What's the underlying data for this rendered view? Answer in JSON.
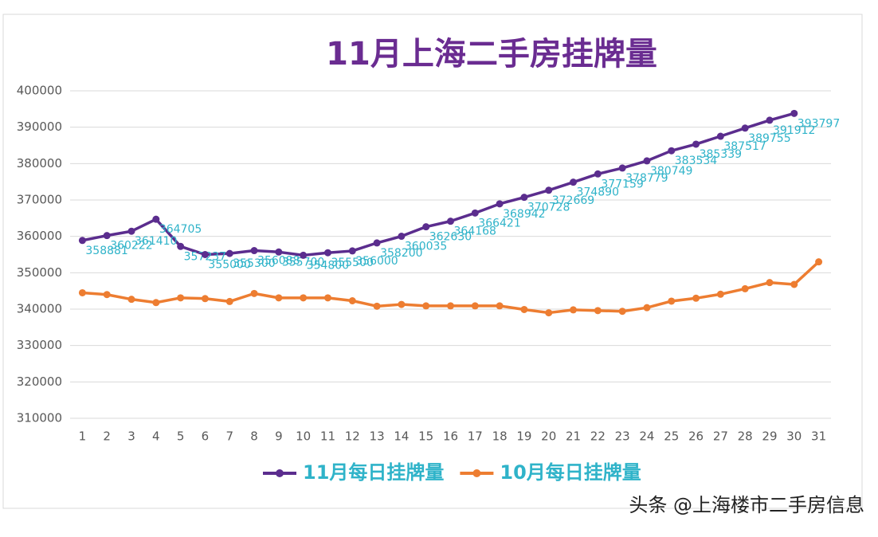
{
  "chart_data": {
    "type": "line",
    "title": "11月上海二手房挂牌量",
    "categories": [
      "1",
      "2",
      "3",
      "4",
      "5",
      "6",
      "7",
      "8",
      "9",
      "10",
      "11",
      "12",
      "13",
      "14",
      "15",
      "16",
      "17",
      "18",
      "19",
      "20",
      "21",
      "22",
      "23",
      "24",
      "25",
      "26",
      "27",
      "28",
      "29",
      "30",
      "31"
    ],
    "series": [
      {
        "name": "11月每日挂牌量",
        "color": "#5b2d8e",
        "data_labels": true,
        "values": [
          358881,
          360222,
          361410,
          364705,
          357237,
          355000,
          355300,
          356088,
          355700,
          354800,
          355500,
          356000,
          358200,
          360035,
          362630,
          364168,
          366421,
          368942,
          370728,
          372669,
          374890,
          377159,
          378779,
          380749,
          383534,
          385339,
          387517,
          389755,
          391912,
          393797,
          null
        ]
      },
      {
        "name": "10月每日挂牌量",
        "color": "#ed7d31",
        "data_labels": false,
        "values": [
          344500,
          344000,
          342700,
          341800,
          343100,
          342900,
          342100,
          344300,
          343100,
          343100,
          343100,
          342300,
          340800,
          341300,
          340900,
          340900,
          340900,
          340900,
          339900,
          339000,
          339800,
          339600,
          339400,
          340400,
          342200,
          343000,
          344100,
          345600,
          347300,
          346800,
          353000
        ]
      }
    ],
    "ylim": [
      310000,
      400000
    ],
    "yticks": [
      310000,
      320000,
      330000,
      340000,
      350000,
      360000,
      370000,
      380000,
      390000,
      400000
    ],
    "grid": true,
    "legend": "bottom",
    "watermark": "头条 @上海楼市二手房信息"
  }
}
